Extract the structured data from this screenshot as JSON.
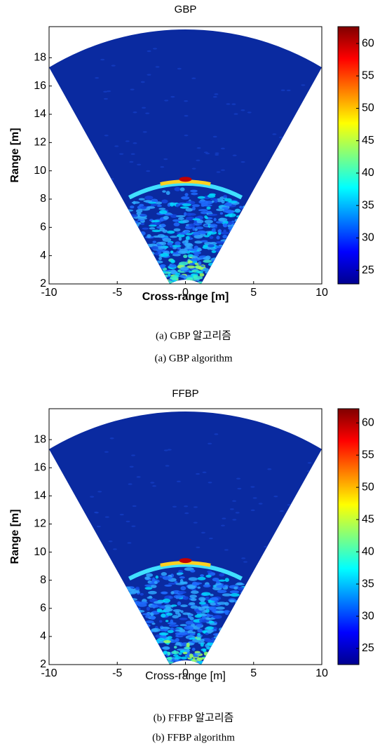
{
  "chart_data": [
    {
      "type": "heatmap",
      "title": "GBP",
      "xlabel": "Cross-range [m]",
      "ylabel": "Range [m]",
      "xlim": [
        -10,
        10
      ],
      "xticks": [
        -10,
        -5,
        0,
        5,
        10
      ],
      "ylim": [
        2,
        20.2
      ],
      "yticks": [
        2,
        4,
        6,
        8,
        10,
        12,
        14,
        16,
        18
      ],
      "colorbar": {
        "colormap": "jet",
        "clim": [
          22.9,
          62.6
        ],
        "ticks": [
          25,
          30,
          35,
          40,
          45,
          50,
          55,
          60
        ]
      },
      "caption": [
        "(a) GBP 알고리즘",
        "(a) GBP algorithm"
      ]
    },
    {
      "type": "heatmap",
      "title": "FFBP",
      "xlabel": "Cross-range [m]",
      "ylabel": "Range [m]",
      "xlim": [
        -10,
        10
      ],
      "xticks": [
        -10,
        -5,
        0,
        5,
        10
      ],
      "ylim": [
        2,
        20.2
      ],
      "yticks": [
        2,
        4,
        6,
        8,
        10,
        12,
        14,
        16,
        18
      ],
      "colorbar": {
        "colormap": "jet",
        "clim": [
          22.5,
          62.2
        ],
        "ticks": [
          25,
          30,
          35,
          40,
          45,
          50,
          55,
          60
        ]
      },
      "caption": [
        "(b) FFBP 알고리즘",
        "(b) FFBP algorithm"
      ]
    }
  ]
}
